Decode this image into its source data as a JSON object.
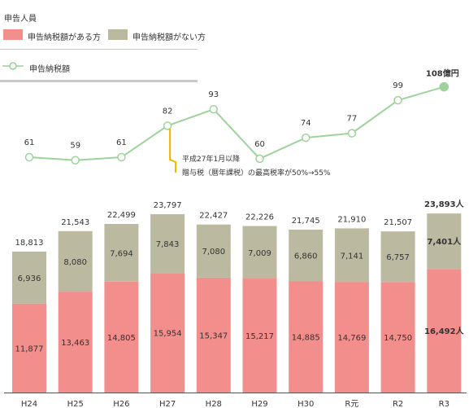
{
  "legend": {
    "group_title": "申告人員",
    "with_tax": "申告納税額がある方",
    "without_tax": "申告納税額がない方",
    "line_label": "申告納税額"
  },
  "colors": {
    "with_tax": "#f28e8c",
    "without_tax": "#bbbaa1",
    "line": "#9dd39a",
    "axis": "#555555"
  },
  "chart_data": {
    "type": "bar",
    "stacked": true,
    "categories": [
      "H24",
      "H25",
      "H26",
      "H27",
      "H28",
      "H29",
      "H30",
      "R元",
      "R2",
      "R3"
    ],
    "series": [
      {
        "name": "申告納税額がある方",
        "values": [
          11877,
          13463,
          14805,
          15954,
          15347,
          15217,
          14885,
          14769,
          14750,
          16492
        ]
      },
      {
        "name": "申告納税額がない方",
        "values": [
          6936,
          8080,
          7694,
          7843,
          7080,
          7009,
          6860,
          7141,
          6757,
          7401
        ]
      }
    ],
    "totals": [
      18813,
      21543,
      22499,
      23797,
      22427,
      22226,
      21745,
      21910,
      21507,
      23893
    ],
    "line": {
      "name": "申告納税額",
      "values": [
        61,
        59,
        61,
        82,
        93,
        60,
        74,
        77,
        99,
        108
      ],
      "last_label": "108億円"
    },
    "last_labels": {
      "total": "23,893人",
      "with_tax": "16,492人",
      "without_tax": "7,401人"
    },
    "annotation": {
      "line1": "平成27年1月以降",
      "line2": "贈与税（暦年課税）の最高税率が50%→55%"
    },
    "legend_position": "top-left"
  }
}
